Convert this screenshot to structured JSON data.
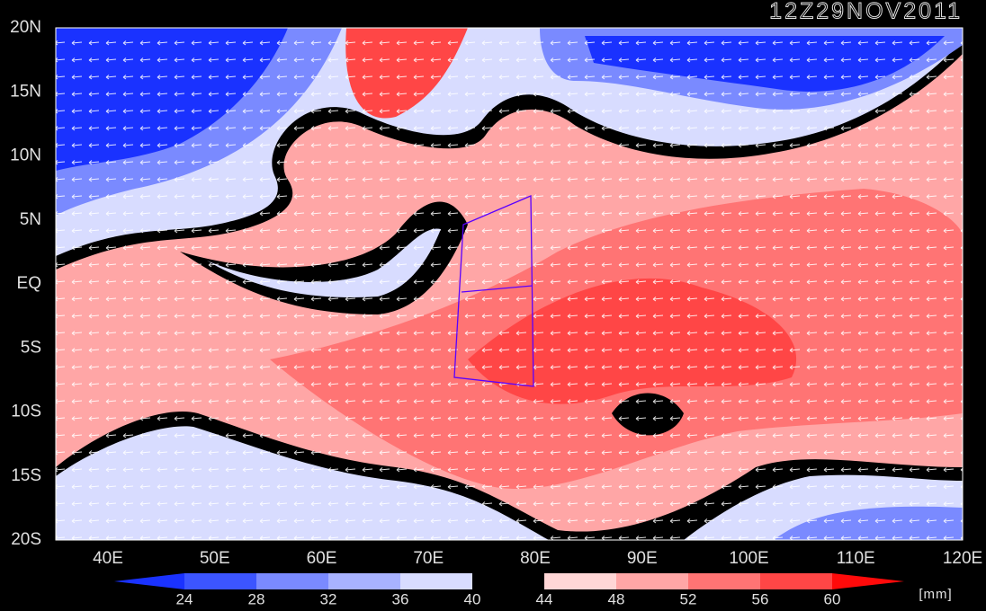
{
  "map": {
    "title": "12Z29NOV2011",
    "lat_labels": [
      "20N",
      "15N",
      "10N",
      "5N",
      "EQ",
      "5S",
      "10S",
      "15S",
      "20S"
    ],
    "lon_labels": [
      "40E",
      "50E",
      "60E",
      "70E",
      "80E",
      "90E",
      "100E",
      "110E",
      "120E"
    ],
    "colorbar": {
      "levels": [
        24,
        28,
        32,
        36,
        40,
        44,
        48,
        52,
        56,
        60
      ],
      "colors": [
        "#1a32ff",
        "#3c55ff",
        "#7a8aff",
        "#a8b2ff",
        "#d8dcff",
        "#000000",
        "#ffd6d6",
        "#ffa6a6",
        "#ff7474",
        "#ff4646",
        "#ff0a0a"
      ],
      "unit": "[mm]"
    }
  }
}
